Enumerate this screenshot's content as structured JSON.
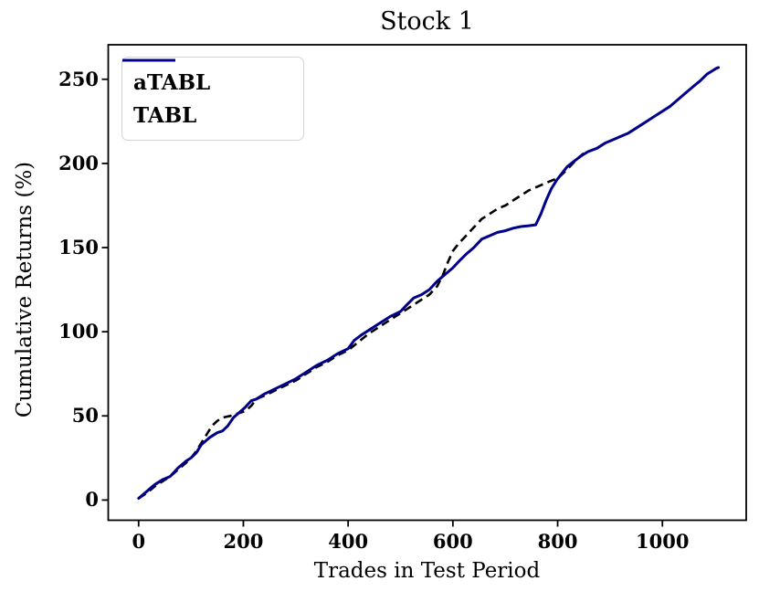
{
  "chart_data": {
    "type": "line",
    "title": "Stock 1",
    "xlabel": "Trades in Test Period",
    "ylabel": "Cumulative Returns (%)",
    "xlim": [
      -58,
      1160
    ],
    "ylim": [
      -12,
      270.5
    ],
    "xticks": [
      0,
      200,
      400,
      600,
      800,
      1000
    ],
    "yticks": [
      0,
      50,
      100,
      150,
      200,
      250
    ],
    "grid": false,
    "legend_position": "upper-left",
    "axis_color": "#000000",
    "series": [
      {
        "name": "aTABL",
        "color": "#000000",
        "style": "dashed",
        "points": [
          [
            0,
            1
          ],
          [
            15,
            4
          ],
          [
            30,
            8
          ],
          [
            45,
            11
          ],
          [
            60,
            14
          ],
          [
            75,
            18
          ],
          [
            90,
            22
          ],
          [
            100,
            25
          ],
          [
            110,
            29
          ],
          [
            120,
            34
          ],
          [
            130,
            39
          ],
          [
            140,
            44
          ],
          [
            150,
            47
          ],
          [
            160,
            49
          ],
          [
            175,
            50
          ],
          [
            190,
            51.5
          ],
          [
            205,
            53
          ],
          [
            215,
            56
          ],
          [
            225,
            60
          ],
          [
            240,
            62
          ],
          [
            260,
            65
          ],
          [
            280,
            68
          ],
          [
            300,
            71
          ],
          [
            320,
            75
          ],
          [
            340,
            79
          ],
          [
            360,
            82
          ],
          [
            380,
            86
          ],
          [
            400,
            89
          ],
          [
            420,
            94
          ],
          [
            440,
            99
          ],
          [
            460,
            103
          ],
          [
            480,
            107
          ],
          [
            500,
            111
          ],
          [
            520,
            115
          ],
          [
            540,
            119
          ],
          [
            555,
            122
          ],
          [
            570,
            127
          ],
          [
            580,
            133
          ],
          [
            590,
            141
          ],
          [
            600,
            148
          ],
          [
            610,
            152
          ],
          [
            625,
            157
          ],
          [
            640,
            162
          ],
          [
            655,
            167
          ],
          [
            670,
            170
          ],
          [
            685,
            173
          ],
          [
            700,
            175
          ],
          [
            715,
            178
          ],
          [
            730,
            181
          ],
          [
            745,
            184
          ],
          [
            760,
            186
          ],
          [
            775,
            188
          ],
          [
            790,
            190
          ],
          [
            800,
            191
          ],
          [
            810,
            194
          ],
          [
            820,
            197
          ],
          [
            832,
            201
          ],
          [
            842,
            204
          ],
          [
            850,
            206
          ]
        ]
      },
      {
        "name": "TABL",
        "color": "#00008B",
        "style": "solid",
        "points": [
          [
            0,
            1
          ],
          [
            15,
            5
          ],
          [
            30,
            9
          ],
          [
            45,
            12
          ],
          [
            60,
            14
          ],
          [
            75,
            19
          ],
          [
            90,
            23
          ],
          [
            100,
            25
          ],
          [
            110,
            28
          ],
          [
            120,
            33
          ],
          [
            135,
            37
          ],
          [
            150,
            40
          ],
          [
            160,
            41
          ],
          [
            170,
            44
          ],
          [
            181,
            49
          ],
          [
            192,
            52
          ],
          [
            203,
            55
          ],
          [
            215,
            59
          ],
          [
            225,
            60
          ],
          [
            240,
            63
          ],
          [
            260,
            66
          ],
          [
            280,
            69
          ],
          [
            300,
            72
          ],
          [
            320,
            76
          ],
          [
            340,
            80
          ],
          [
            360,
            83
          ],
          [
            380,
            87
          ],
          [
            400,
            90
          ],
          [
            412,
            95
          ],
          [
            425,
            98
          ],
          [
            440,
            101
          ],
          [
            460,
            105
          ],
          [
            480,
            109
          ],
          [
            500,
            112
          ],
          [
            512,
            116
          ],
          [
            525,
            120
          ],
          [
            540,
            122
          ],
          [
            555,
            125
          ],
          [
            570,
            130
          ],
          [
            585,
            134
          ],
          [
            600,
            138
          ],
          [
            612,
            142
          ],
          [
            625,
            146
          ],
          [
            640,
            150
          ],
          [
            655,
            155
          ],
          [
            670,
            157
          ],
          [
            685,
            159
          ],
          [
            700,
            160
          ],
          [
            715,
            161.5
          ],
          [
            730,
            162.5
          ],
          [
            745,
            163
          ],
          [
            758,
            163.5
          ],
          [
            768,
            170
          ],
          [
            778,
            178
          ],
          [
            788,
            185
          ],
          [
            798,
            190
          ],
          [
            808,
            194
          ],
          [
            818,
            198
          ],
          [
            830,
            201
          ],
          [
            845,
            204.5
          ],
          [
            858,
            207
          ],
          [
            875,
            209
          ],
          [
            890,
            212
          ],
          [
            905,
            214
          ],
          [
            920,
            216
          ],
          [
            935,
            218
          ],
          [
            950,
            221
          ],
          [
            965,
            224
          ],
          [
            980,
            227
          ],
          [
            1000,
            231
          ],
          [
            1015,
            234
          ],
          [
            1030,
            238
          ],
          [
            1045,
            242
          ],
          [
            1060,
            246
          ],
          [
            1072,
            249
          ],
          [
            1085,
            253
          ],
          [
            1095,
            255
          ],
          [
            1103,
            256.5
          ],
          [
            1107,
            257
          ]
        ]
      }
    ]
  },
  "legend": {
    "entries": [
      {
        "label": "aTABL"
      },
      {
        "label": "TABL"
      }
    ]
  }
}
